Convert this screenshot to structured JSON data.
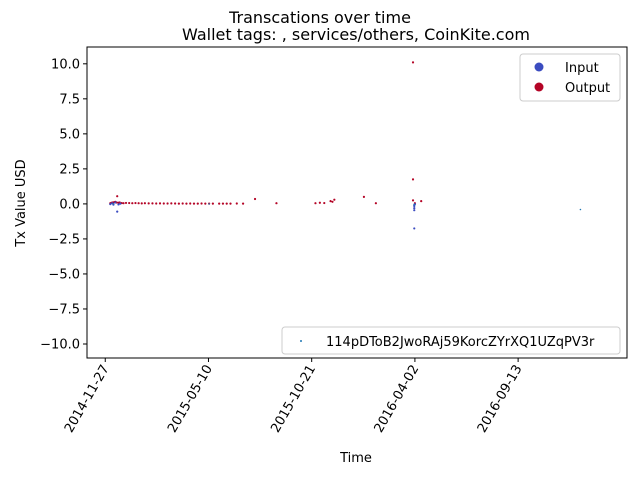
{
  "chart_data": {
    "type": "scatter",
    "title": "Transcations over time",
    "subtitle": "Wallet tags: , services/others, CoinKite.com",
    "xlabel": "Time",
    "ylabel": "Tx Value USD",
    "xlim": [
      "2014-10-29",
      "2017-03-05"
    ],
    "ylim": [
      -11,
      11.2
    ],
    "x_ticks": [
      "2014-11-27",
      "2015-05-10",
      "2015-10-21",
      "2016-04-02",
      "2016-09-13"
    ],
    "y_ticks": [
      -10.0,
      -7.5,
      -5.0,
      -2.5,
      0.0,
      2.5,
      5.0,
      7.5,
      10.0
    ],
    "y_tick_labels": [
      "−10.0",
      "−7.5",
      "−5.0",
      "−2.5",
      "0.0",
      "2.5",
      "5.0",
      "7.5",
      "10.0"
    ],
    "grid": false,
    "legend_upper": {
      "position": "top-right",
      "entries": [
        {
          "label": "Input",
          "color": "#3b4cc0"
        },
        {
          "label": "Output",
          "color": "#b40426"
        }
      ]
    },
    "legend_lower": {
      "position": "bottom-right",
      "entries": [
        {
          "label": "114pDToB2JwoRAj59KorcZYrXQ1UZqPV3r",
          "color": "#1f77b4"
        }
      ]
    },
    "series": [
      {
        "name": "Output",
        "color": "#b40426",
        "points": [
          [
            "2014-12-05",
            0.05
          ],
          [
            "2014-12-07",
            0.08
          ],
          [
            "2014-12-09",
            0.1
          ],
          [
            "2014-12-11",
            0.12
          ],
          [
            "2014-12-13",
            0.15
          ],
          [
            "2014-12-15",
            0.1
          ],
          [
            "2014-12-16",
            0.55
          ],
          [
            "2014-12-18",
            0.08
          ],
          [
            "2014-12-20",
            0.1
          ],
          [
            "2014-12-23",
            0.06
          ],
          [
            "2014-12-26",
            0.05
          ],
          [
            "2014-12-30",
            0.07
          ],
          [
            "2015-01-04",
            0.06
          ],
          [
            "2015-01-09",
            0.05
          ],
          [
            "2015-01-14",
            0.06
          ],
          [
            "2015-01-19",
            0.05
          ],
          [
            "2015-01-24",
            0.04
          ],
          [
            "2015-01-29",
            0.05
          ],
          [
            "2015-02-04",
            0.04
          ],
          [
            "2015-02-10",
            0.04
          ],
          [
            "2015-02-16",
            0.03
          ],
          [
            "2015-02-22",
            0.04
          ],
          [
            "2015-02-28",
            0.03
          ],
          [
            "2015-03-06",
            0.03
          ],
          [
            "2015-03-12",
            0.04
          ],
          [
            "2015-03-18",
            0.03
          ],
          [
            "2015-03-24",
            0.02
          ],
          [
            "2015-03-30",
            0.03
          ],
          [
            "2015-04-05",
            0.02
          ],
          [
            "2015-04-11",
            0.03
          ],
          [
            "2015-04-17",
            0.02
          ],
          [
            "2015-04-23",
            0.02
          ],
          [
            "2015-04-29",
            0.03
          ],
          [
            "2015-05-05",
            0.02
          ],
          [
            "2015-05-11",
            0.02
          ],
          [
            "2015-05-17",
            0.02
          ],
          [
            "2015-05-27",
            0.02
          ],
          [
            "2015-06-02",
            0.02
          ],
          [
            "2015-06-08",
            0.02
          ],
          [
            "2015-06-14",
            0.02
          ],
          [
            "2015-06-24",
            0.03
          ],
          [
            "2015-07-04",
            0.02
          ],
          [
            "2015-07-23",
            0.35
          ],
          [
            "2015-08-26",
            0.05
          ],
          [
            "2015-10-27",
            0.05
          ],
          [
            "2015-11-03",
            0.08
          ],
          [
            "2015-11-10",
            0.06
          ],
          [
            "2015-11-20",
            0.2
          ],
          [
            "2015-11-23",
            0.15
          ],
          [
            "2015-11-26",
            0.3
          ],
          [
            "2016-01-12",
            0.5
          ],
          [
            "2016-01-31",
            0.05
          ],
          [
            "2016-03-30",
            10.1
          ],
          [
            "2016-03-30",
            1.75
          ],
          [
            "2016-03-30",
            0.25
          ],
          [
            "2016-04-12",
            0.2
          ],
          [
            "2016-04-02",
            0.05
          ]
        ]
      },
      {
        "name": "Input",
        "color": "#3b4cc0",
        "points": [
          [
            "2014-12-05",
            -0.02
          ],
          [
            "2014-12-08",
            0.05
          ],
          [
            "2014-12-10",
            -0.05
          ],
          [
            "2014-12-13",
            0.1
          ],
          [
            "2014-12-16",
            -0.55
          ],
          [
            "2014-12-18",
            -0.04
          ],
          [
            "2014-12-21",
            0.02
          ],
          [
            "2016-04-01",
            -0.15
          ],
          [
            "2016-04-01",
            -0.3
          ],
          [
            "2016-04-01",
            -0.45
          ],
          [
            "2016-04-01",
            -1.75
          ],
          [
            "2016-04-01",
            -0.08
          ],
          [
            "2016-04-02",
            -0.02
          ]
        ]
      },
      {
        "name": "114pDToB2JwoRAj59KorcZYrXQ1UZqPV3r",
        "color": "#1f77b4",
        "points": [
          [
            "2016-12-21",
            -0.4
          ],
          [
            "2016-04-01",
            -0.05
          ],
          [
            "2015-05-11",
            0.0
          ],
          [
            "2014-12-10",
            0.0
          ]
        ]
      }
    ]
  }
}
